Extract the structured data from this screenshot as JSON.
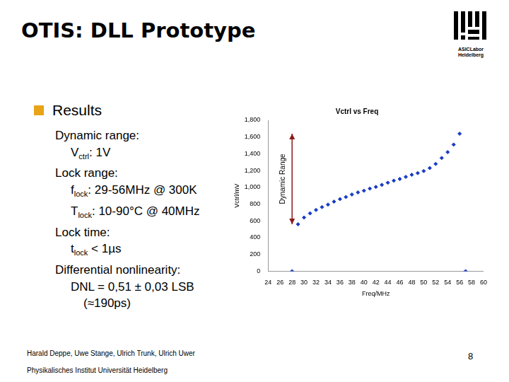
{
  "slide": {
    "title": "OTIS: DLL Prototype",
    "logo": [
      "ASICLabor",
      "Heidelberg"
    ],
    "heading": "Results",
    "lines": [
      {
        "level": 0,
        "text": "Dynamic range:"
      },
      {
        "level": 1,
        "base": "V",
        "sub": "ctrl",
        "text": ": 1V"
      },
      {
        "level": 0,
        "text": "Lock range:"
      },
      {
        "level": 1,
        "base": "f",
        "sub": "lock",
        "text": ": 29-56MHz @ 300K"
      },
      {
        "level": 1,
        "base": "T",
        "sub": "lock",
        "text": ": 10-90°C @ 40MHz"
      },
      {
        "level": 0,
        "text": "Lock time:"
      },
      {
        "level": 1,
        "base": "t",
        "sub": "lock",
        "text": " < 1µs"
      },
      {
        "level": 0,
        "text": "Differential nonlinearity:"
      },
      {
        "level": 1,
        "text": "DNL = 0,51 ± 0,03 LSB"
      },
      {
        "level": 2,
        "text": "(≈190ps)"
      }
    ],
    "footer": [
      "Harald Deppe, Uwe Stange, Ulrich Trunk, Ulrich Uwer",
      "Physikalisches Institut Universität Heidelberg"
    ],
    "page": 8
  },
  "chart_data": {
    "type": "scatter",
    "title": "Vctrl vs Freq",
    "x_label": "Freq/MHz",
    "y_label": "Vctrl/mV",
    "x": [
      28,
      29,
      30,
      31,
      32,
      33,
      34,
      35,
      36,
      37,
      38,
      39,
      40,
      41,
      42,
      43,
      44,
      45,
      46,
      47,
      48,
      49,
      50,
      51,
      52,
      53,
      54,
      55,
      56,
      57
    ],
    "values": [
      0,
      560,
      640,
      690,
      730,
      765,
      795,
      830,
      860,
      885,
      915,
      940,
      960,
      985,
      1005,
      1030,
      1055,
      1080,
      1100,
      1125,
      1150,
      1170,
      1195,
      1230,
      1280,
      1350,
      1420,
      1510,
      1640,
      0
    ],
    "color": "#1a3cc4",
    "marker": "diamond",
    "xlim": [
      24,
      60
    ],
    "xticks": [
      24,
      26,
      28,
      30,
      32,
      34,
      36,
      38,
      40,
      42,
      44,
      46,
      48,
      50,
      52,
      54,
      56,
      58,
      60
    ],
    "ylim": [
      0,
      1800
    ],
    "yticks": [
      0,
      200,
      400,
      600,
      800,
      1000,
      1200,
      1400,
      1600,
      1800
    ],
    "grid": false,
    "annotation": {
      "text": "Dynamic Range",
      "x": 28,
      "y_from": 560,
      "y_to": 1640,
      "color": "#8b1a1a"
    }
  }
}
